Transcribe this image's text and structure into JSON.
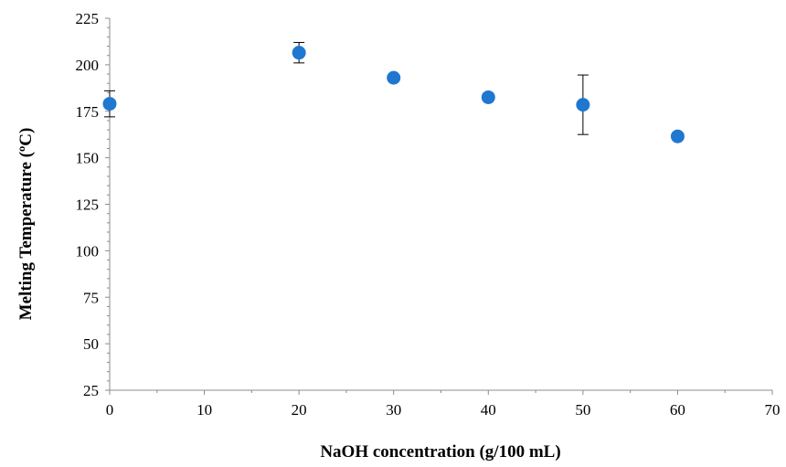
{
  "chart_data": {
    "type": "scatter",
    "title": "",
    "xlabel": "NaOH concentration (g/100 mL)",
    "ylabel": "Melting Temperature (ºC)",
    "xlim": [
      0,
      70
    ],
    "ylim": [
      25,
      225
    ],
    "x_ticks": [
      0,
      10,
      20,
      30,
      40,
      50,
      60,
      70
    ],
    "y_ticks": [
      25,
      50,
      75,
      100,
      125,
      150,
      175,
      200,
      225
    ],
    "grid": false,
    "legend": "none",
    "marker_color": "#1f77d0",
    "series": [
      {
        "points": [
          {
            "x": 0,
            "y": 179,
            "err_low": 172,
            "err_high": 186
          },
          {
            "x": 20,
            "y": 206.5,
            "err_low": 201,
            "err_high": 212
          },
          {
            "x": 30,
            "y": 193,
            "err_low": 193,
            "err_high": 193
          },
          {
            "x": 40,
            "y": 182.5,
            "err_low": 182.5,
            "err_high": 182.5
          },
          {
            "x": 50,
            "y": 178.5,
            "err_low": 162.5,
            "err_high": 194.5
          },
          {
            "x": 60,
            "y": 161.5,
            "err_low": 160,
            "err_high": 163
          }
        ]
      }
    ]
  }
}
